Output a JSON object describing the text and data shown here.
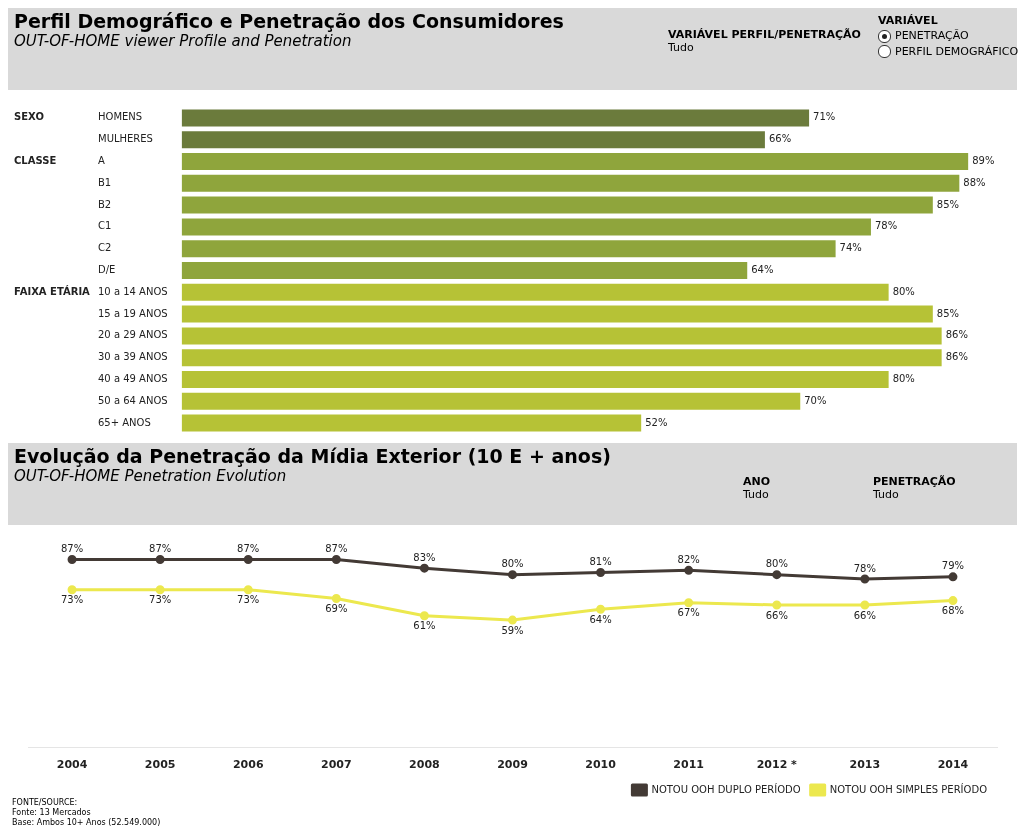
{
  "chart_data": [
    {
      "type": "bar",
      "orientation": "horizontal",
      "title": "Perfil Demográfico e Penetração dos Consumidores",
      "subtitle": "OUT-OF-HOME viewer Profile and Penetration",
      "categories": [
        "HOMENS",
        "MULHERES",
        "A",
        "B1",
        "B2",
        "C1",
        "C2",
        "D/E",
        "10 a 14 ANOS",
        "15 a 19 ANOS",
        "20 a 29 ANOS",
        "30 a 39 ANOS",
        "40 a 49 ANOS",
        "50 a 64 ANOS",
        "65+ ANOS"
      ],
      "values": [
        71,
        66,
        89,
        88,
        85,
        78,
        74,
        64,
        80,
        85,
        86,
        86,
        80,
        70,
        52
      ],
      "value_labels": [
        "71%",
        "66%",
        "89%",
        "88%",
        "85%",
        "78%",
        "74%",
        "64%",
        "80%",
        "85%",
        "86%",
        "86%",
        "80%",
        "70%",
        "52%"
      ],
      "colors": [
        "#6b7b3c",
        "#6b7b3c",
        "#8fa53c",
        "#8fa53c",
        "#8fa53c",
        "#8fa53c",
        "#8fa53c",
        "#8fa53c",
        "#b6c236",
        "#b6c236",
        "#b6c236",
        "#b6c236",
        "#b6c236",
        "#b6c236",
        "#b6c236"
      ],
      "grid": false,
      "legend": false,
      "annotations": [
        "VARIÁVEL PERFIL/PENETRAÇÃO",
        "Tudo",
        "VARIÁVEL",
        "PENETRAÇÃO",
        "PERFIL DEMOGRÁFICO",
        "SEXO",
        "CLASSE",
        "FAIXA ETÁRIA"
      ]
    },
    {
      "type": "line",
      "title": "Evolução da Penetração da Mídia Exterior (10 E + anos)",
      "subtitle": "OUT-OF-HOME Penetration Evolution",
      "categories": [
        "2004",
        "2005",
        "2006",
        "2007",
        "2008",
        "2009",
        "2010",
        "2011",
        "2012 *",
        "2013",
        "2014"
      ],
      "series": [
        {
          "name": "NOTOU OOH DUPLO PERÍODO",
          "color": "#433a35",
          "values": [
            87,
            87,
            87,
            87,
            83,
            80,
            81,
            82,
            80,
            78,
            79
          ],
          "value_labels": [
            "87%",
            "87%",
            "87%",
            "87%",
            "83%",
            "80%",
            "81%",
            "82%",
            "80%",
            "78%",
            "79%"
          ]
        },
        {
          "name": "NOTOU OOH SIMPLES PERÍODO",
          "color": "#ece84e",
          "values": [
            73,
            73,
            73,
            69,
            61,
            59,
            64,
            67,
            66,
            66,
            68
          ],
          "value_labels": [
            "73%",
            "73%",
            "73%",
            "69%",
            "61%",
            "59%",
            "64%",
            "67%",
            "66%",
            "66%",
            "68%"
          ]
        }
      ],
      "marker": "circle",
      "grid": false,
      "legend": "bottom right",
      "annotations": [
        "ANO",
        "Tudo",
        "PENETRAÇÃO",
        "Tudo",
        "FONTE/SOURCE:",
        "Fonte: 13 Mercados",
        "Base: Ambos 10+ Anos (52.549.000)"
      ]
    }
  ]
}
